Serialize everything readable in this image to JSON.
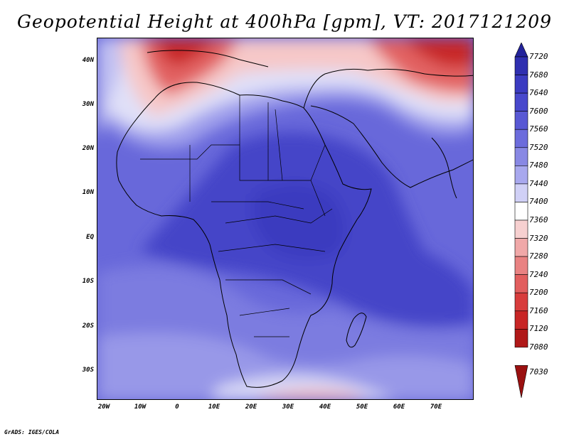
{
  "title": "Geopotential Height at 400hPa [gpm], VT: 2017121209",
  "credit": "GrADS: IGES/COLA",
  "y_axis_labels": [
    "40N",
    "30N",
    "20N",
    "10N",
    "EQ",
    "10S",
    "20S",
    "30S"
  ],
  "x_axis_labels": [
    "20W",
    "10W",
    "0",
    "10E",
    "20E",
    "30E",
    "40E",
    "50E",
    "60E",
    "70E"
  ],
  "colorbar": {
    "levels": [
      "7720",
      "7680",
      "7640",
      "7600",
      "7560",
      "7520",
      "7480",
      "7440",
      "7400",
      "7360",
      "7320",
      "7280",
      "7240",
      "7200",
      "7160",
      "7120",
      "7080",
      "7030"
    ],
    "colors": [
      "#23239b",
      "#2f2fb0",
      "#3b3bc1",
      "#4848cc",
      "#5858d4",
      "#6c6cdc",
      "#8888e4",
      "#a8a8ee",
      "#d0d0f6",
      "#ffffff",
      "#f7d0d0",
      "#f0a8a8",
      "#e98282",
      "#e25e5e",
      "#d83c3c",
      "#c82626",
      "#b01818",
      "#9a1010"
    ]
  },
  "colors": {
    "ocean_high": "#5c5cd6",
    "land_high": "#4848cc",
    "low_heights": "#c82626",
    "boundary": "#000000"
  }
}
